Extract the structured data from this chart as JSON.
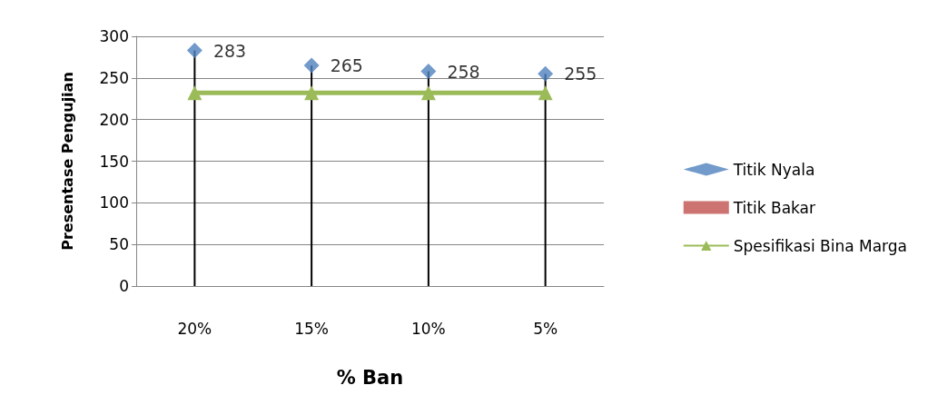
{
  "chart_data": {
    "type": "line",
    "xlabel": "% Ban",
    "ylabel": "Presentase Pengujian",
    "categories": [
      "20%",
      "15%",
      "10%",
      "5%"
    ],
    "ylim": [
      0,
      300
    ],
    "yticks": [
      0,
      50,
      100,
      150,
      200,
      250,
      300
    ],
    "grid": "y",
    "legend": "right",
    "series": [
      {
        "name": "Titik Nyala",
        "type": "lollipop",
        "color": "#4f81bd",
        "marker": "diamond",
        "values": [
          283,
          265,
          258,
          255
        ],
        "value_labels": [
          "283",
          "265",
          "258",
          "255"
        ]
      },
      {
        "name": "Titik Bakar",
        "type": "scatter",
        "color": "#c0504d",
        "marker": "square",
        "values": [
          null,
          null,
          null,
          null
        ]
      },
      {
        "name": "Spesifikasi Bina Marga",
        "color": "#9bbb59",
        "marker": "triangle",
        "line_style": "solid",
        "values": [
          232,
          232,
          232,
          232
        ]
      }
    ]
  }
}
